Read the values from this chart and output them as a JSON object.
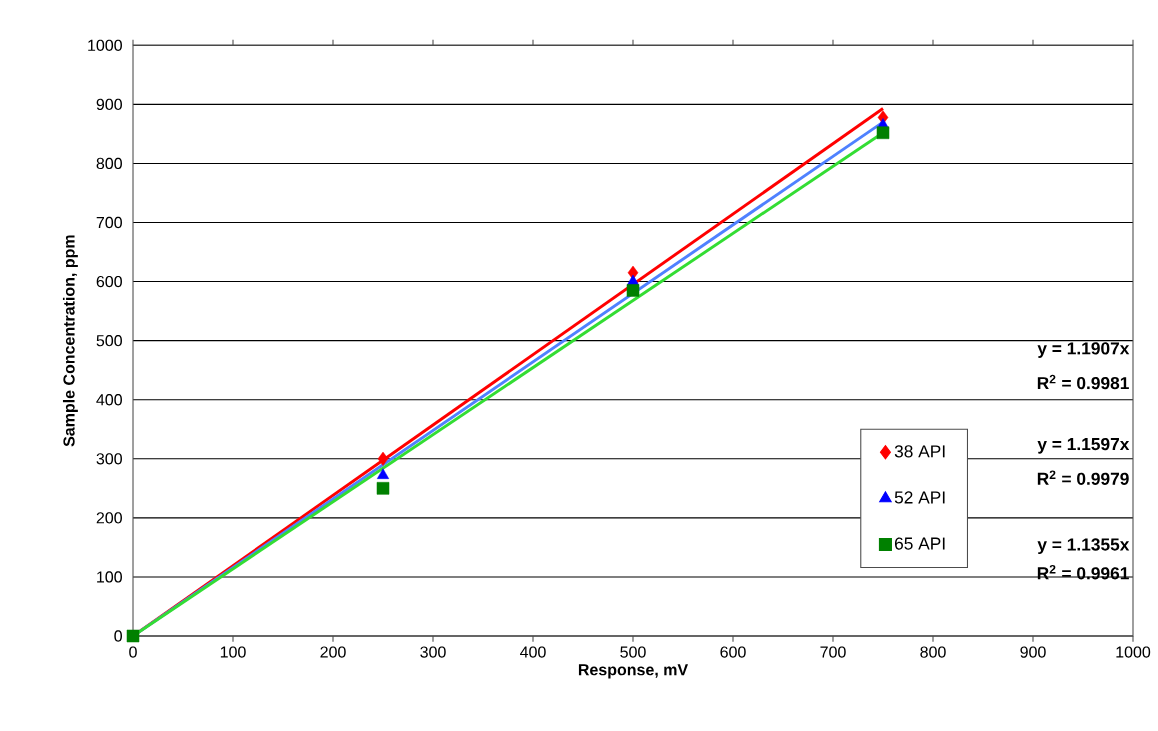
{
  "chart_data": {
    "type": "scatter",
    "xlabel": "Response, mV",
    "ylabel": "Sample Concentration, ppm",
    "xlim": [
      0,
      1000
    ],
    "xticks": [
      0,
      100,
      200,
      300,
      400,
      500,
      600,
      700,
      800,
      900,
      1000
    ],
    "ylim": [
      0,
      1000
    ],
    "yticks": [
      0,
      100,
      200,
      300,
      400,
      500,
      600,
      700,
      800,
      900,
      1000
    ],
    "grid": "y",
    "legend": "right",
    "series": [
      {
        "name": "38 API",
        "marker": "diamond",
        "color": "#ff0000",
        "x": [
          250,
          500,
          750
        ],
        "values": [
          300,
          615,
          878
        ]
      },
      {
        "name": "52 API",
        "marker": "triangle",
        "color": "#0000ff",
        "x": [
          250,
          500,
          750
        ],
        "values": [
          272,
          600,
          865
        ]
      },
      {
        "name": "65 API",
        "marker": "square",
        "color": "#008000",
        "x": [
          0,
          250,
          500,
          750
        ],
        "values": [
          0,
          250,
          585,
          852
        ]
      },
      {
        "type": "line",
        "marker": "none",
        "line_style": "solid",
        "color": "#ff0000",
        "x": [
          0,
          750
        ],
        "values": [
          0,
          893
        ]
      },
      {
        "type": "line",
        "marker": "none",
        "line_style": "solid",
        "color": "#4f81ff",
        "x": [
          0,
          750
        ],
        "values": [
          0,
          870
        ]
      },
      {
        "type": "line",
        "marker": "none",
        "line_style": "solid",
        "color": "#33dd33",
        "x": [
          0,
          750
        ],
        "values": [
          0,
          852
        ]
      }
    ],
    "annotations": [
      "y = 1.1907x",
      "R$^{2}$ = 0.9981",
      "y = 1.1597x",
      "R$^{2}$ = 0.9979",
      "y = 1.1355x",
      "R$^{2}$ = 0.9961"
    ]
  }
}
